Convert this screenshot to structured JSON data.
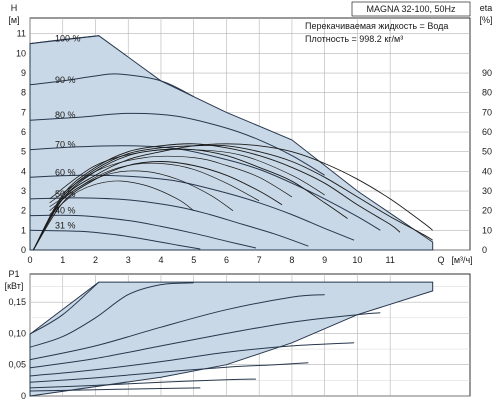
{
  "chart_data": [
    {
      "type": "line",
      "name": "pump-head-efficiency",
      "header": "MAGNA 32-100, 50Hz",
      "info": [
        "Перекачиваемая жидкость = Вода",
        "Плотность = 998.2 кг/м³"
      ],
      "y_axis": {
        "label": "H",
        "unit": "[м]",
        "ticks": [
          "0",
          "1",
          "2",
          "3",
          "4",
          "5",
          "6",
          "7",
          "8",
          "9",
          "10",
          "11"
        ],
        "range": [
          0,
          11.8
        ]
      },
      "y2_axis": {
        "label": "eta",
        "unit": "[%]",
        "ticks": [
          "0",
          "10",
          "20",
          "30",
          "40",
          "50",
          "60",
          "70",
          "80",
          "90"
        ],
        "range": [
          0,
          118
        ]
      },
      "x_axis": {
        "label": "Q",
        "unit": "[м³/ч]",
        "ticks": [
          "0",
          "1",
          "2",
          "3",
          "4",
          "5",
          "6",
          "7",
          "8",
          "9",
          "10",
          "11"
        ],
        "range": [
          0,
          12.4
        ]
      },
      "fill_color": "#c9d8e6",
      "line_color": "#27374d",
      "head_curves": [
        {
          "label": "100 %",
          "points": [
            [
              0,
              10.5
            ],
            [
              1,
              10.7
            ],
            [
              2.1,
              10.9
            ]
          ]
        },
        {
          "label": "90 %",
          "points": [
            [
              0,
              8.4
            ],
            [
              1,
              8.6
            ],
            [
              2,
              8.85
            ],
            [
              2.7,
              8.95
            ],
            [
              4,
              8.6
            ],
            [
              5,
              7.8
            ]
          ]
        },
        {
          "label": "80 %",
          "points": [
            [
              0,
              6.6
            ],
            [
              1.5,
              6.75
            ],
            [
              3,
              6.95
            ],
            [
              4.5,
              6.8
            ],
            [
              6,
              6.2
            ],
            [
              7,
              5.6
            ],
            [
              8,
              4.8
            ],
            [
              9,
              3.8
            ]
          ]
        },
        {
          "label": "70 %",
          "points": [
            [
              0,
              5.1
            ],
            [
              1.5,
              5.25
            ],
            [
              3,
              5.3
            ],
            [
              4.5,
              5.15
            ],
            [
              6,
              4.6
            ],
            [
              7,
              4.1
            ],
            [
              8,
              3.4
            ],
            [
              9,
              2.6
            ],
            [
              10,
              1.7
            ],
            [
              10.7,
              1.0
            ]
          ]
        },
        {
          "label": "60 %",
          "points": [
            [
              0,
              3.7
            ],
            [
              1.5,
              3.8
            ],
            [
              3,
              3.75
            ],
            [
              4.5,
              3.5
            ],
            [
              6,
              2.9
            ],
            [
              7,
              2.4
            ],
            [
              8,
              1.8
            ],
            [
              9,
              1.1
            ],
            [
              9.9,
              0.5
            ]
          ]
        },
        {
          "label": "50 %",
          "points": [
            [
              0,
              2.6
            ],
            [
              1.5,
              2.65
            ],
            [
              3,
              2.55
            ],
            [
              4.5,
              2.2
            ],
            [
              5.5,
              1.8
            ],
            [
              6.5,
              1.3
            ],
            [
              7.5,
              0.8
            ],
            [
              8.5,
              0.2
            ]
          ]
        },
        {
          "label": "40 %",
          "points": [
            [
              0,
              1.75
            ],
            [
              1.5,
              1.75
            ],
            [
              3,
              1.5
            ],
            [
              4,
              1.2
            ],
            [
              5,
              0.85
            ],
            [
              6,
              0.45
            ],
            [
              6.9,
              0.1
            ]
          ]
        },
        {
          "label": "31 %",
          "points": [
            [
              0,
              1.0
            ],
            [
              1.5,
              0.95
            ],
            [
              2.5,
              0.8
            ],
            [
              3.5,
              0.55
            ],
            [
              4.5,
              0.25
            ],
            [
              5.2,
              0.05
            ]
          ]
        }
      ],
      "eff_curves": [
        {
          "points": [
            [
              0.1,
              0
            ],
            [
              1,
              24
            ],
            [
              2,
              36
            ],
            [
              3,
              43
            ],
            [
              4,
              45
            ],
            [
              5,
              43
            ],
            [
              6,
              38
            ],
            [
              7,
              30
            ],
            [
              7.7,
              23
            ]
          ]
        },
        {
          "points": [
            [
              0.1,
              0
            ],
            [
              1,
              26
            ],
            [
              2,
              40
            ],
            [
              3,
              48
            ],
            [
              4,
              51
            ],
            [
              5,
              51
            ],
            [
              6,
              48
            ],
            [
              7,
              42
            ],
            [
              8,
              35
            ],
            [
              9,
              24
            ],
            [
              9.7,
              16
            ]
          ]
        },
        {
          "points": [
            [
              0.1,
              0
            ],
            [
              1,
              28
            ],
            [
              2,
              42
            ],
            [
              3,
              50
            ],
            [
              4,
              53
            ],
            [
              5,
              54
            ],
            [
              6,
              52
            ],
            [
              7,
              48
            ],
            [
              8,
              42
            ],
            [
              9,
              34
            ],
            [
              10,
              23
            ],
            [
              11,
              13
            ],
            [
              11.3,
              9
            ]
          ]
        },
        {
          "points": [
            [
              0.1,
              0
            ],
            [
              1,
              27
            ],
            [
              2,
              41
            ],
            [
              3,
              49
            ],
            [
              4,
              52
            ],
            [
              5,
              53
            ],
            [
              6,
              53
            ],
            [
              7,
              50
            ],
            [
              8,
              45
            ],
            [
              9,
              37
            ],
            [
              10,
              27
            ],
            [
              11,
              17
            ],
            [
              12,
              8
            ],
            [
              12.3,
              5
            ]
          ]
        },
        {
          "points": [
            [
              0.1,
              0
            ],
            [
              1,
              26
            ],
            [
              2,
              38
            ],
            [
              3,
              46
            ],
            [
              4,
              50
            ],
            [
              5,
              53
            ],
            [
              6,
              54
            ],
            [
              7,
              53
            ],
            [
              8,
              50
            ],
            [
              9,
              44
            ],
            [
              10,
              36
            ],
            [
              11,
              26
            ],
            [
              12,
              14
            ],
            [
              12.3,
              10
            ]
          ]
        }
      ],
      "small_eff_curves": [
        {
          "points": [
            [
              0.6,
              18
            ],
            [
              1.5,
              30
            ],
            [
              2.5,
              35
            ],
            [
              3.5,
              33
            ],
            [
              4.5,
              26
            ],
            [
              5,
              20
            ]
          ]
        },
        {
          "points": [
            [
              0.6,
              20
            ],
            [
              1.5,
              32
            ],
            [
              2.5,
              39
            ],
            [
              3.5,
              40
            ],
            [
              4.5,
              36
            ],
            [
              5.5,
              28
            ],
            [
              6.2,
              20
            ]
          ]
        },
        {
          "points": [
            [
              0.6,
              22
            ],
            [
              2,
              37
            ],
            [
              3,
              43
            ],
            [
              4,
              44
            ],
            [
              5,
              41
            ],
            [
              6,
              34
            ],
            [
              7,
              25
            ]
          ]
        },
        {
          "points": [
            [
              0.6,
              24
            ],
            [
              2,
              40
            ],
            [
              3.5,
              47
            ],
            [
              5,
              47
            ],
            [
              6,
              43
            ],
            [
              7,
              37
            ],
            [
              8,
              27
            ]
          ]
        },
        {
          "points": [
            [
              0.6,
              26
            ],
            [
              2,
              43
            ],
            [
              3.5,
              50
            ],
            [
              5,
              51
            ],
            [
              6.5,
              48
            ],
            [
              8,
              38
            ],
            [
              9,
              28
            ]
          ]
        }
      ],
      "envelope": [
        [
          0,
          10.5
        ],
        [
          2.1,
          10.9
        ],
        [
          4,
          8.6
        ],
        [
          6,
          7.0
        ],
        [
          8,
          5.6
        ],
        [
          10,
          3.0
        ],
        [
          12.3,
          0.4
        ],
        [
          12.3,
          0
        ],
        [
          0,
          0
        ]
      ]
    },
    {
      "type": "line",
      "name": "power",
      "y_axis": {
        "label": "P1",
        "unit": "[кВт]",
        "ticks": [
          "0",
          "0,05",
          "0,10",
          "0,15"
        ],
        "range": [
          0,
          0.195
        ]
      },
      "x_axis": {
        "range": [
          0,
          12.4
        ]
      },
      "fill_color": "#c9d8e6",
      "line_color": "#27374d",
      "power_curves": [
        {
          "points": [
            [
              0,
              0.099
            ],
            [
              1,
              0.13
            ],
            [
              2.1,
              0.182
            ]
          ]
        },
        {
          "points": [
            [
              0,
              0.078
            ],
            [
              1,
              0.095
            ],
            [
              2,
              0.125
            ],
            [
              3,
              0.162
            ],
            [
              4,
              0.178
            ],
            [
              5,
              0.181
            ]
          ]
        },
        {
          "points": [
            [
              0,
              0.058
            ],
            [
              2,
              0.08
            ],
            [
              4,
              0.11
            ],
            [
              6,
              0.138
            ],
            [
              8,
              0.158
            ],
            [
              9,
              0.162
            ]
          ]
        },
        {
          "points": [
            [
              0,
              0.045
            ],
            [
              2,
              0.06
            ],
            [
              4,
              0.08
            ],
            [
              6,
              0.1
            ],
            [
              8,
              0.118
            ],
            [
              10,
              0.13
            ],
            [
              10.7,
              0.133
            ]
          ]
        },
        {
          "points": [
            [
              0,
              0.032
            ],
            [
              2,
              0.042
            ],
            [
              4,
              0.055
            ],
            [
              6,
              0.07
            ],
            [
              8,
              0.08
            ],
            [
              9.9,
              0.085
            ]
          ]
        },
        {
          "points": [
            [
              0,
              0.022
            ],
            [
              2,
              0.029
            ],
            [
              4,
              0.038
            ],
            [
              6,
              0.046
            ],
            [
              7.5,
              0.05
            ],
            [
              8.5,
              0.053
            ]
          ]
        },
        {
          "points": [
            [
              0,
              0.013
            ],
            [
              2,
              0.017
            ],
            [
              4,
              0.022
            ],
            [
              6,
              0.026
            ],
            [
              6.9,
              0.027
            ]
          ]
        },
        {
          "points": [
            [
              0,
              0.008
            ],
            [
              2,
              0.01
            ],
            [
              4,
              0.012
            ],
            [
              5.2,
              0.013
            ]
          ]
        }
      ],
      "envelope": [
        [
          0,
          0.099
        ],
        [
          2.1,
          0.182
        ],
        [
          12.3,
          0.182
        ],
        [
          12.3,
          0.168
        ],
        [
          10,
          0.13
        ],
        [
          8,
          0.085
        ],
        [
          6,
          0.05
        ],
        [
          4,
          0.03
        ],
        [
          0,
          0
        ]
      ]
    }
  ]
}
